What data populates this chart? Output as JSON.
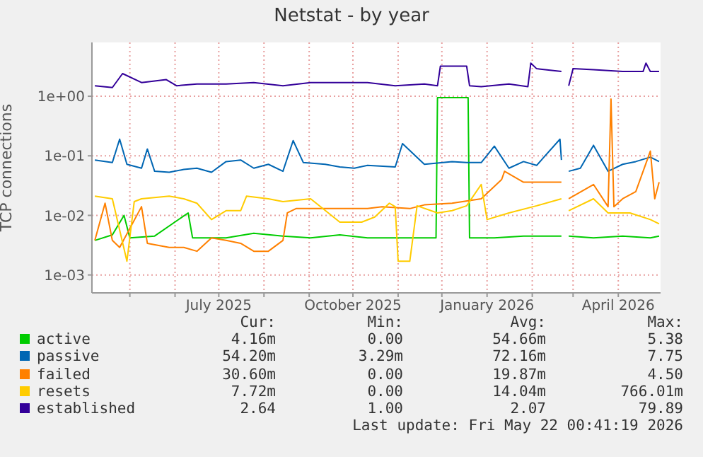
{
  "chart_data": {
    "type": "line",
    "title": "Netstat - by year",
    "ylabel": "TCP connections",
    "log": "y",
    "grid": true,
    "legend": "bottom",
    "line_style": "solid",
    "xlim": [
      "2025-04-05",
      "2026-04-30"
    ],
    "xticks": [
      {
        "value": "2025-05-01",
        "label": null
      },
      {
        "value": "2025-06-01",
        "label": null
      },
      {
        "value": "2025-07-01",
        "label": "July 2025"
      },
      {
        "value": "2025-08-01",
        "label": null
      },
      {
        "value": "2025-09-01",
        "label": null
      },
      {
        "value": "2025-10-01",
        "label": "October 2025"
      },
      {
        "value": "2025-11-01",
        "label": null
      },
      {
        "value": "2025-12-01",
        "label": null
      },
      {
        "value": "2026-01-01",
        "label": "January 2026"
      },
      {
        "value": "2026-02-01",
        "label": null
      },
      {
        "value": "2026-03-01",
        "label": null
      },
      {
        "value": "2026-04-01",
        "label": "April 2026"
      }
    ],
    "ylim": [
      0.0005,
      8
    ],
    "yticks": [
      {
        "value": 0.001,
        "label": "1e-03"
      },
      {
        "value": 0.01,
        "label": "1e-02"
      },
      {
        "value": 0.1,
        "label": "1e-01"
      },
      {
        "value": 1,
        "label": "1e+00"
      }
    ],
    "series": [
      {
        "name": "active",
        "color": "#00cc00",
        "x": [
          "2025-04-07",
          "2025-04-19",
          "2025-04-27",
          "2025-05-01",
          "2025-05-18",
          "2025-06-10",
          "2025-06-13",
          "2025-07-06",
          "2025-07-25",
          "2025-08-14",
          "2025-09-02",
          "2025-09-22",
          "2025-10-11",
          "2025-10-30",
          "2025-11-19",
          "2025-11-27",
          "2025-11-28",
          "2025-12-19",
          "2025-12-20",
          "2026-01-06",
          "2026-01-26",
          "2026-02-21",
          "2026-02-23",
          "2026-02-26",
          "2026-03-15",
          "2026-04-04",
          "2026-04-23",
          "2026-04-29"
        ],
        "values": [
          0.0038,
          0.0047,
          0.01,
          0.0042,
          0.0045,
          0.011,
          0.0042,
          0.0042,
          0.005,
          0.0045,
          0.0042,
          0.0047,
          0.0042,
          0.0042,
          0.0042,
          0.0042,
          0.95,
          0.95,
          0.0042,
          0.0042,
          0.0045,
          0.0045,
          null,
          0.0045,
          0.0042,
          0.0045,
          0.0042,
          0.0045
        ]
      },
      {
        "name": "passive",
        "color": "#0066b3",
        "x": [
          "2025-04-07",
          "2025-04-19",
          "2025-04-24",
          "2025-04-29",
          "2025-05-09",
          "2025-05-13",
          "2025-05-18",
          "2025-05-28",
          "2025-06-07",
          "2025-06-16",
          "2025-06-26",
          "2025-07-06",
          "2025-07-16",
          "2025-07-25",
          "2025-08-04",
          "2025-08-14",
          "2025-08-21",
          "2025-08-28",
          "2025-09-12",
          "2025-09-22",
          "2025-10-02",
          "2025-10-11",
          "2025-10-30",
          "2025-11-04",
          "2025-11-19",
          "2025-12-08",
          "2025-12-18",
          "2025-12-28",
          "2026-01-06",
          "2026-01-16",
          "2026-01-26",
          "2026-02-04",
          "2026-02-09",
          "2026-02-20",
          "2026-02-21",
          "2026-02-23",
          "2026-02-26",
          "2026-03-06",
          "2026-03-15",
          "2026-03-25",
          "2026-04-04",
          "2026-04-13",
          "2026-04-23",
          "2026-04-29"
        ],
        "values": [
          0.085,
          0.077,
          0.19,
          0.072,
          0.062,
          0.13,
          0.055,
          0.053,
          0.059,
          0.062,
          0.053,
          0.08,
          0.085,
          0.062,
          0.072,
          0.055,
          0.18,
          0.077,
          0.072,
          0.065,
          0.062,
          0.069,
          0.065,
          0.16,
          0.072,
          0.08,
          0.077,
          0.077,
          0.145,
          0.062,
          0.08,
          0.069,
          0.095,
          0.19,
          0.085,
          null,
          0.055,
          0.062,
          0.15,
          0.055,
          0.072,
          0.08,
          0.095,
          0.08
        ]
      },
      {
        "name": "failed",
        "color": "#ff8000",
        "x": [
          "2025-04-07",
          "2025-04-14",
          "2025-04-19",
          "2025-04-24",
          "2025-05-09",
          "2025-05-13",
          "2025-05-28",
          "2025-06-07",
          "2025-06-16",
          "2025-06-26",
          "2025-07-06",
          "2025-07-16",
          "2025-07-25",
          "2025-08-04",
          "2025-08-14",
          "2025-08-17",
          "2025-08-23",
          "2025-09-12",
          "2025-10-11",
          "2025-10-21",
          "2025-11-09",
          "2025-11-19",
          "2025-12-08",
          "2025-12-28",
          "2026-01-11",
          "2026-01-13",
          "2026-01-26",
          "2026-02-21",
          "2026-02-23",
          "2026-02-26",
          "2026-03-15",
          "2026-03-25",
          "2026-03-27",
          "2026-03-29",
          "2026-04-04",
          "2026-04-13",
          "2026-04-23",
          "2026-04-26",
          "2026-04-29"
        ],
        "values": [
          0.0038,
          0.016,
          0.0038,
          0.0029,
          0.014,
          0.0034,
          0.0029,
          0.0029,
          0.0025,
          0.0042,
          0.0038,
          0.0034,
          0.0025,
          0.0025,
          0.0038,
          0.011,
          0.013,
          0.013,
          0.013,
          0.014,
          0.013,
          0.015,
          0.016,
          0.019,
          0.04,
          0.055,
          0.036,
          0.036,
          null,
          0.019,
          0.033,
          0.014,
          0.9,
          0.014,
          0.019,
          0.025,
          0.12,
          0.019,
          0.036
        ]
      },
      {
        "name": "resets",
        "color": "#ffcc00",
        "x": [
          "2025-04-07",
          "2025-04-19",
          "2025-04-29",
          "2025-05-04",
          "2025-05-09",
          "2025-05-28",
          "2025-06-07",
          "2025-06-16",
          "2025-06-26",
          "2025-07-06",
          "2025-07-16",
          "2025-07-20",
          "2025-08-04",
          "2025-08-14",
          "2025-09-02",
          "2025-09-22",
          "2025-10-07",
          "2025-10-16",
          "2025-10-26",
          "2025-10-30",
          "2025-11-01",
          "2025-11-09",
          "2025-11-14",
          "2025-11-28",
          "2025-12-08",
          "2025-12-18",
          "2025-12-28",
          "2026-01-01",
          "2026-01-16",
          "2026-02-04",
          "2026-02-21",
          "2026-02-23",
          "2026-02-26",
          "2026-03-15",
          "2026-03-25",
          "2026-04-09",
          "2026-04-23",
          "2026-04-29"
        ],
        "values": [
          0.021,
          0.019,
          0.0017,
          0.017,
          0.019,
          0.021,
          0.019,
          0.016,
          0.0085,
          0.012,
          0.012,
          0.021,
          0.019,
          0.017,
          0.019,
          0.0077,
          0.0077,
          0.0094,
          0.016,
          0.014,
          0.0017,
          0.0017,
          0.0145,
          0.011,
          0.012,
          0.0145,
          0.033,
          0.0085,
          0.011,
          0.0145,
          0.019,
          null,
          0.012,
          0.019,
          0.011,
          0.011,
          0.0085,
          0.0072
        ]
      },
      {
        "name": "established",
        "color": "#330099",
        "x": [
          "2025-04-07",
          "2025-04-19",
          "2025-04-26",
          "2025-05-09",
          "2025-05-26",
          "2025-06-02",
          "2025-06-16",
          "2025-07-06",
          "2025-07-25",
          "2025-08-14",
          "2025-09-02",
          "2025-09-22",
          "2025-10-11",
          "2025-10-30",
          "2025-11-19",
          "2025-11-28",
          "2025-11-30",
          "2025-12-18",
          "2025-12-20",
          "2025-12-28",
          "2026-01-16",
          "2026-01-29",
          "2026-01-31",
          "2026-02-04",
          "2026-02-21",
          "2026-02-23",
          "2026-02-26",
          "2026-03-01",
          "2026-03-15",
          "2026-04-04",
          "2026-04-18",
          "2026-04-20",
          "2026-04-23",
          "2026-04-29"
        ],
        "values": [
          1.5,
          1.4,
          2.4,
          1.7,
          1.9,
          1.5,
          1.6,
          1.6,
          1.7,
          1.5,
          1.7,
          1.7,
          1.7,
          1.5,
          1.6,
          1.5,
          3.2,
          3.2,
          1.5,
          1.45,
          1.6,
          1.45,
          3.6,
          2.9,
          2.6,
          null,
          1.5,
          2.9,
          2.8,
          2.6,
          2.6,
          3.6,
          2.6,
          2.6
        ]
      }
    ],
    "annotations": [
      "Cur:",
      "Min:",
      "Avg:",
      "Max:",
      "4.16m",
      "0.00",
      "54.66m",
      "5.38",
      "54.20m",
      "3.29m",
      "72.16m",
      "7.75",
      "30.60m",
      "0.00",
      "19.87m",
      "4.50",
      "7.72m",
      "0.00",
      "14.04m",
      "766.01m",
      "2.64",
      "1.00",
      "2.07",
      "79.89",
      "Last update: Fri May 22 00:41:19 2026"
    ]
  }
}
